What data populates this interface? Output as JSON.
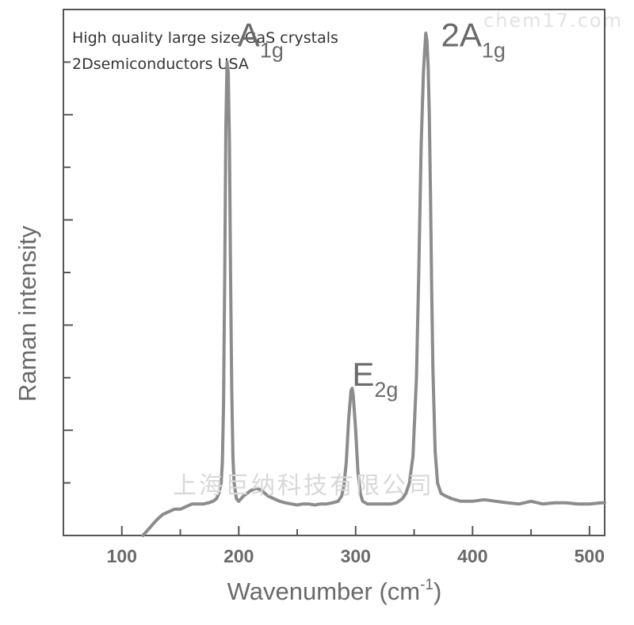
{
  "header": {
    "line1": "High quality large size GaS crystals",
    "line2": "2Dsemiconductors USA"
  },
  "watermarks": {
    "top_right": "chem17.com",
    "center": "上海巨纳科技有限公司"
  },
  "colors": {
    "trace": "#8c8c8c",
    "axis": "#555555",
    "text": "#555555",
    "watermark": "#d8d8d8"
  },
  "chart_data": {
    "type": "line",
    "xlabel": "Wavenumber (cm",
    "xlabel_sup": "-1",
    "xlabel_close": ")",
    "ylabel": "Raman intensity",
    "xlim": [
      50,
      513
    ],
    "ylim": [
      0,
      1
    ],
    "x_ticks": [
      100,
      200,
      300,
      400,
      500
    ],
    "y_minor_ticks": [
      0.1,
      0.3,
      0.5,
      0.7,
      0.9
    ],
    "y_major_ticks": [
      0.2,
      0.4,
      0.6,
      0.8
    ],
    "grid": false,
    "y_tick_labels": false,
    "annotations": [
      {
        "base": "A",
        "sub": "1g",
        "x": 199,
        "y": 0.975
      },
      {
        "base": "E",
        "sub": "2g",
        "x": 297,
        "y": 0.33
      },
      {
        "base": "2A",
        "sub": "1g",
        "x": 373,
        "y": 0.975
      }
    ],
    "series": [
      {
        "x": [
          118,
          122,
          126,
          130,
          135,
          140,
          145,
          150,
          155,
          160,
          165,
          170,
          174,
          178,
          181,
          183,
          185,
          186,
          187,
          188,
          189,
          190,
          191,
          192,
          193,
          194,
          195,
          196,
          198,
          200,
          204,
          210,
          215,
          220,
          225,
          230,
          235,
          240,
          245,
          250,
          255,
          260,
          265,
          270,
          275,
          280,
          285,
          288,
          290,
          292,
          294,
          296,
          297,
          298,
          300,
          302,
          304,
          306,
          310,
          315,
          320,
          325,
          330,
          335,
          340,
          343,
          346,
          349,
          352,
          354,
          356,
          358,
          359,
          360,
          361,
          362,
          363,
          364,
          365,
          366,
          368,
          370,
          373,
          377,
          382,
          390,
          400,
          410,
          420,
          430,
          440,
          450,
          460,
          470,
          480,
          490,
          500,
          510,
          513
        ],
        "y": [
          0.0,
          0.01,
          0.02,
          0.03,
          0.04,
          0.045,
          0.05,
          0.05,
          0.055,
          0.06,
          0.06,
          0.06,
          0.062,
          0.065,
          0.07,
          0.08,
          0.1,
          0.14,
          0.25,
          0.5,
          0.78,
          0.9,
          0.88,
          0.75,
          0.5,
          0.28,
          0.15,
          0.1,
          0.07,
          0.065,
          0.075,
          0.085,
          0.09,
          0.085,
          0.075,
          0.07,
          0.065,
          0.062,
          0.06,
          0.058,
          0.06,
          0.06,
          0.058,
          0.06,
          0.06,
          0.062,
          0.065,
          0.075,
          0.095,
          0.14,
          0.22,
          0.275,
          0.28,
          0.265,
          0.2,
          0.12,
          0.08,
          0.065,
          0.06,
          0.06,
          0.06,
          0.06,
          0.06,
          0.062,
          0.07,
          0.08,
          0.1,
          0.15,
          0.3,
          0.5,
          0.74,
          0.88,
          0.92,
          0.955,
          0.94,
          0.89,
          0.8,
          0.65,
          0.47,
          0.32,
          0.16,
          0.1,
          0.08,
          0.075,
          0.07,
          0.065,
          0.065,
          0.068,
          0.065,
          0.062,
          0.06,
          0.065,
          0.06,
          0.062,
          0.062,
          0.06,
          0.06,
          0.062,
          0.062
        ]
      }
    ]
  }
}
